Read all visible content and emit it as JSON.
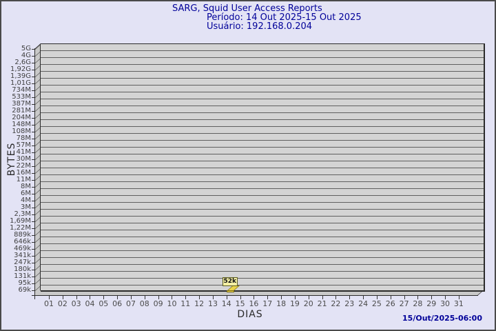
{
  "header": {
    "title": "SARG, Squid User Access Reports",
    "period": "Período: 14 Out 2025-15 Out 2025",
    "user": "Usuário: 192.168.0.204"
  },
  "footer": {
    "timestamp": "15/Out/2025-06:00"
  },
  "chart_data": {
    "type": "bar",
    "style": "3d-bar",
    "title": "SARG, Squid User Access Reports",
    "subtitle_period": "Período: 14 Out 2025-15 Out 2025",
    "subtitle_user": "Usuário: 192.168.0.204",
    "xlabel": "DIAS",
    "ylabel": "BYTES",
    "y_scale": "log",
    "grid": true,
    "y_tick_labels": [
      "5G",
      "4G",
      "2,6G",
      "1,92G",
      "1,39G",
      "1,01G",
      "734M",
      "533M",
      "387M",
      "281M",
      "204M",
      "148M",
      "108M",
      "78M",
      "57M",
      "41M",
      "30M",
      "22M",
      "16M",
      "11M",
      "8M",
      "6M",
      "4M",
      "3M",
      "2,3M",
      "1,69M",
      "1,22M",
      "889k",
      "646k",
      "469k",
      "341k",
      "247k",
      "180k",
      "131k",
      "95k",
      "69k"
    ],
    "x_tick_labels": [
      "01",
      "02",
      "03",
      "04",
      "05",
      "06",
      "07",
      "08",
      "09",
      "10",
      "11",
      "12",
      "13",
      "14",
      "15",
      "16",
      "17",
      "18",
      "19",
      "20",
      "21",
      "22",
      "23",
      "24",
      "25",
      "26",
      "27",
      "28",
      "29",
      "30",
      "31"
    ],
    "points": [
      {
        "day": "14",
        "label": "52k",
        "value_bytes": 52000
      }
    ],
    "colors": {
      "page_bg": "#e3e3f5",
      "plot_bg": "#d4d4d4",
      "wall": "#c9c9c9",
      "grid": "#5f5f5f",
      "frame": "#2a2a2a",
      "title_text": "#000099",
      "tick_text": "#3f3f3f",
      "bar_fill": "#e9d44b",
      "tooltip_bg": "#f3efa3",
      "tooltip_border": "#5c5c20"
    }
  }
}
